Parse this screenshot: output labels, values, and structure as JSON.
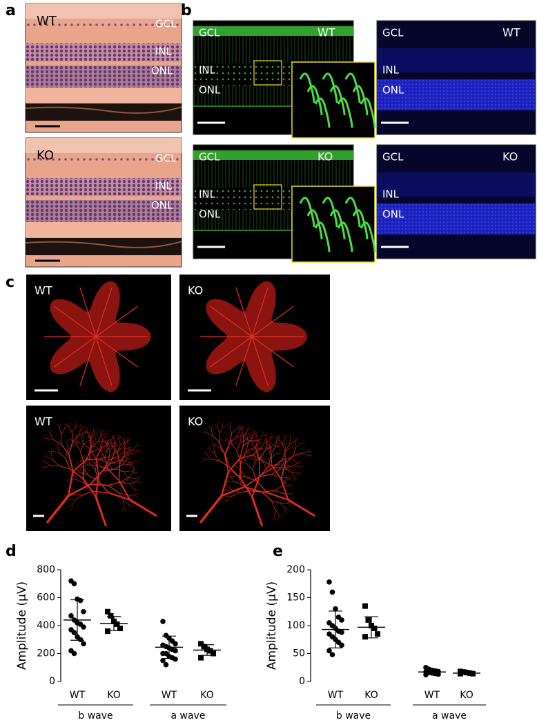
{
  "panels": {
    "a": {
      "label": "a",
      "images": [
        {
          "genotype": "WT",
          "layers": [
            "GCL",
            "INL",
            "ONL"
          ]
        },
        {
          "genotype": "KO",
          "layers": [
            "GCL",
            "INL",
            "ONL"
          ]
        }
      ]
    },
    "b": {
      "label": "b",
      "images": [
        {
          "genotype": "WT",
          "layers": [
            "GCL",
            "INL",
            "ONL"
          ]
        },
        {
          "genotype": "WT",
          "layers": [
            "GCL",
            "INL",
            "ONL"
          ]
        },
        {
          "genotype": "KO",
          "layers": [
            "GCL",
            "INL",
            "ONL"
          ]
        },
        {
          "genotype": "KO",
          "layers": [
            "GCL",
            "INL",
            "ONL"
          ]
        }
      ]
    },
    "c": {
      "label": "c",
      "images": [
        "WT",
        "KO",
        "WT",
        "KO"
      ]
    }
  },
  "chart_data": [
    {
      "type": "strip",
      "panel": "d",
      "ylabel": "Amplitude (μV)",
      "ylim": [
        0,
        800
      ],
      "yticks": [
        0,
        200,
        400,
        600,
        800
      ],
      "categories": [
        "WT",
        "KO",
        "WT",
        "KO"
      ],
      "groups": [
        "b wave",
        "a wave"
      ],
      "markers": [
        "circle",
        "square",
        "circle",
        "square"
      ],
      "color": "#000000",
      "points": [
        [
          720,
          700,
          590,
          580,
          500,
          470,
          440,
          420,
          410,
          390,
          370,
          350,
          320,
          300,
          270,
          220,
          200
        ],
        [
          500,
          470,
          430,
          410,
          380,
          360
        ],
        [
          430,
          330,
          310,
          290,
          270,
          260,
          250,
          240,
          230,
          220,
          200,
          200,
          180,
          170,
          160,
          150,
          120
        ],
        [
          270,
          250,
          230,
          220,
          200,
          170
        ]
      ],
      "means": [
        440,
        415,
        245,
        225
      ],
      "sds": [
        145,
        50,
        80,
        38
      ]
    },
    {
      "type": "strip",
      "panel": "e",
      "ylabel": "Amplitude (μV)",
      "ylim": [
        0,
        200
      ],
      "yticks": [
        0,
        50,
        100,
        150,
        200
      ],
      "categories": [
        "WT",
        "KO",
        "WT",
        "KO"
      ],
      "groups": [
        "b wave",
        "a wave"
      ],
      "markers": [
        "circle",
        "square",
        "circle",
        "square"
      ],
      "color": "#000000",
      "points": [
        [
          178,
          160,
          130,
          115,
          110,
          105,
          100,
          95,
          90,
          88,
          85,
          80,
          75,
          70,
          65,
          55,
          48
        ],
        [
          135,
          110,
          100,
          95,
          85,
          80
        ],
        [
          25,
          22,
          20,
          19,
          18,
          17,
          16,
          15,
          14,
          13,
          12,
          20,
          18
        ],
        [
          18,
          17,
          16,
          15,
          14,
          14
        ]
      ],
      "means": [
        93,
        97,
        17,
        15
      ],
      "sds": [
        33,
        19,
        4,
        2
      ]
    }
  ]
}
